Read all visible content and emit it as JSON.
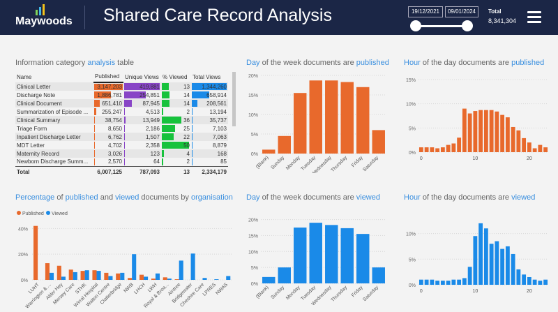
{
  "header": {
    "logo_text": "Maywoods",
    "title": "Shared Care Record Analysis",
    "date_start": "19/12/2021",
    "date_end": "09/01/2024",
    "total_label": "Total",
    "total_value": "8,341,304",
    "menu_icon": "hamburger-menu-icon"
  },
  "colors": {
    "header_bg": "#1b2646",
    "published": "#e8692c",
    "viewed": "#1a8ae8",
    "unique_views": "#8845c6",
    "pct_viewed": "#17c23c",
    "accent_text": "#3a8fdf"
  },
  "table_panel": {
    "title_pre": "Information category ",
    "title_hl": "analysis",
    "title_post": " table",
    "columns": [
      "Name",
      "Published",
      "Unique Views",
      "% Viewed",
      "Total Views"
    ],
    "rows": [
      {
        "name": "Clinical Letter",
        "published": "3,147,203",
        "unique": "419,881",
        "pct": "13",
        "total": "1,344,260",
        "pub_v": 3147203,
        "uniq_v": 419881,
        "pct_v": 13,
        "tot_v": 1344260
      },
      {
        "name": "Discharge Note",
        "published": "1,886,781",
        "unique": "254,851",
        "pct": "14",
        "total": "658,914",
        "pub_v": 1886781,
        "uniq_v": 254851,
        "pct_v": 14,
        "tot_v": 658914
      },
      {
        "name": "Clinical Document",
        "published": "651,410",
        "unique": "87,945",
        "pct": "14",
        "total": "208,561",
        "pub_v": 651410,
        "uniq_v": 87945,
        "pct_v": 14,
        "tot_v": 208561
      },
      {
        "name": "Summarization of Episode ...",
        "published": "255,247",
        "unique": "4,513",
        "pct": "2",
        "total": "13,194",
        "pub_v": 255247,
        "uniq_v": 4513,
        "pct_v": 2,
        "tot_v": 13194
      },
      {
        "name": "Clinical Summary",
        "published": "38,754",
        "unique": "13,949",
        "pct": "36",
        "total": "35,737",
        "pub_v": 38754,
        "uniq_v": 13949,
        "pct_v": 36,
        "tot_v": 35737
      },
      {
        "name": "Triage Form",
        "published": "8,650",
        "unique": "2,186",
        "pct": "25",
        "total": "7,103",
        "pub_v": 8650,
        "uniq_v": 2186,
        "pct_v": 25,
        "tot_v": 7103
      },
      {
        "name": "Inpatient Discharge Letter",
        "published": "6,762",
        "unique": "1,507",
        "pct": "22",
        "total": "7,063",
        "pub_v": 6762,
        "uniq_v": 1507,
        "pct_v": 22,
        "tot_v": 7063
      },
      {
        "name": "MDT Letter",
        "published": "4,702",
        "unique": "2,358",
        "pct": "50",
        "total": "8,879",
        "pub_v": 4702,
        "uniq_v": 2358,
        "pct_v": 50,
        "tot_v": 8879
      },
      {
        "name": "Maternity Record",
        "published": "3,026",
        "unique": "123",
        "pct": "4",
        "total": "168",
        "pub_v": 3026,
        "uniq_v": 123,
        "pct_v": 4,
        "tot_v": 168
      },
      {
        "name": "Newborn Discharge Summ...",
        "published": "2,570",
        "unique": "64",
        "pct": "2",
        "total": "85",
        "pub_v": 2570,
        "uniq_v": 64,
        "pct_v": 2,
        "tot_v": 85
      }
    ],
    "total_row": {
      "name": "Total",
      "published": "6,007,125",
      "unique": "787,093",
      "pct": "13",
      "total": "2,334,179"
    }
  },
  "panel_titles": {
    "dow_pub": {
      "hl1": "Day",
      "mid": " of the week documents are ",
      "hl2": "published"
    },
    "hod_pub": {
      "hl1": "Hour",
      "mid": " of the day documents are ",
      "hl2": "published"
    },
    "org": {
      "hl1": "Percentage",
      "m1": " of ",
      "hl2": "published",
      "m2": " and ",
      "hl3": "viewed",
      "m3": " documents by ",
      "hl4": "organisation"
    },
    "dow_view": {
      "hl1": "Day",
      "mid": " of the week documents are ",
      "hl2": "viewed"
    },
    "hod_view": {
      "hl1": "Hour",
      "mid": " of the day documents are ",
      "hl2": "viewed"
    }
  },
  "chart_data": [
    {
      "id": "dow_published",
      "type": "bar",
      "categories": [
        "(Blank)",
        "Sunday",
        "Monday",
        "Tuesday",
        "Wednesday",
        "Thursday",
        "Friday",
        "Saturday"
      ],
      "values": [
        1,
        4.5,
        15.5,
        18.7,
        18.7,
        18.3,
        17,
        6
      ],
      "yticks": [
        "0%",
        "5%",
        "10%",
        "15%",
        "20%"
      ],
      "ylim": [
        0,
        20
      ],
      "color": "#e8692c"
    },
    {
      "id": "hod_published",
      "type": "bar",
      "x": [
        0,
        1,
        2,
        3,
        4,
        5,
        6,
        7,
        8,
        9,
        10,
        11,
        12,
        13,
        14,
        15,
        16,
        17,
        18,
        19,
        20,
        21,
        22,
        23
      ],
      "values": [
        1,
        1,
        1,
        0.8,
        1,
        1.5,
        1.8,
        3,
        9,
        8,
        8.5,
        8.7,
        8.7,
        8.7,
        8.4,
        7.7,
        7.2,
        5.2,
        4.5,
        2.9,
        2,
        0.8,
        1.5,
        1
      ],
      "xticks": [
        "0",
        "10",
        "20"
      ],
      "yticks": [
        "0%",
        "5%",
        "10%",
        "15%"
      ],
      "ylim": [
        0,
        15
      ],
      "color": "#e8692c"
    },
    {
      "id": "org_pct",
      "type": "bar",
      "categories": [
        "LUHT",
        "Warrington & ...",
        "Alder Hey",
        "Mersey Care",
        "STHK",
        "Wirral Hospital",
        "Walton Centre",
        "Clatterbridge",
        "NWB",
        "LHCH",
        "LWH",
        "Royal & Broa...",
        "Aintree",
        "Bridgewater",
        "Cheshire Care",
        "LPRES",
        "NWAS"
      ],
      "series": [
        {
          "name": "Published",
          "values": [
            42,
            13,
            11,
            8,
            7,
            7.5,
            5.5,
            5,
            1.5,
            4,
            1,
            2,
            0.5,
            0,
            0,
            0,
            0
          ]
        },
        {
          "name": "Viewed",
          "values": [
            0,
            5.5,
            2.5,
            6,
            7.5,
            7,
            3,
            5.5,
            20,
            2.5,
            5,
            1,
            15,
            20.5,
            1.5,
            0.5,
            3
          ]
        }
      ],
      "legend": [
        "Published",
        "Viewed"
      ],
      "yticks": [
        "0%",
        "20%",
        "40%"
      ],
      "ylim": [
        0,
        44
      ],
      "colors": [
        "#e8692c",
        "#1a8ae8"
      ]
    },
    {
      "id": "dow_viewed",
      "type": "bar",
      "categories": [
        "(Blank)",
        "Sunday",
        "Monday",
        "Tuesday",
        "Wednesday",
        "Thursday",
        "Friday",
        "Saturday"
      ],
      "values": [
        2,
        5,
        17.5,
        19,
        18.3,
        17.3,
        15.5,
        5
      ],
      "yticks": [
        "0%",
        "5%",
        "10%",
        "15%",
        "20%"
      ],
      "ylim": [
        0,
        21
      ],
      "color": "#1a8ae8"
    },
    {
      "id": "hod_viewed",
      "type": "bar",
      "x": [
        0,
        1,
        2,
        3,
        4,
        5,
        6,
        7,
        8,
        9,
        10,
        11,
        12,
        13,
        14,
        15,
        16,
        17,
        18,
        19,
        20,
        21,
        22,
        23
      ],
      "values": [
        1,
        1,
        1,
        0.8,
        0.8,
        0.8,
        1,
        1,
        1.3,
        3.5,
        9.5,
        12,
        11,
        8,
        8.5,
        7,
        7.5,
        6,
        3,
        2,
        1.5,
        1,
        0.8,
        1
      ],
      "xticks": [
        "0",
        "10",
        "20"
      ],
      "yticks": [
        "0%",
        "5%",
        "10%"
      ],
      "ylim": [
        0,
        12.8
      ],
      "color": "#1a8ae8"
    }
  ]
}
